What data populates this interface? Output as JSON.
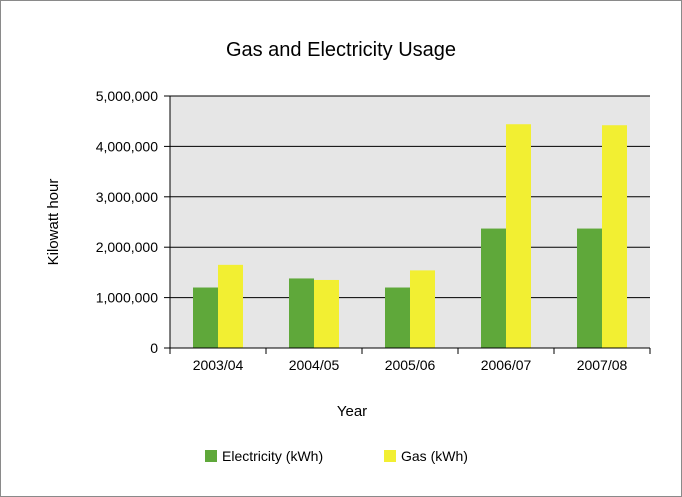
{
  "chart_data": {
    "type": "bar",
    "title": "Gas and Electricity Usage",
    "xlabel": "Year",
    "ylabel": "Kilowatt hour",
    "categories": [
      "2003/04",
      "2004/05",
      "2005/06",
      "2006/07",
      "2007/08"
    ],
    "ylim": [
      0,
      5000000
    ],
    "yticks": [
      0,
      1000000,
      2000000,
      3000000,
      4000000,
      5000000
    ],
    "ytick_labels": [
      "0",
      "1,000,000",
      "2,000,000",
      "3,000,000",
      "4,000,000",
      "5,000,000"
    ],
    "grid": true,
    "legend_position": "bottom",
    "series": [
      {
        "name": "Electricity (kWh)",
        "color": "#5fa83a",
        "values": [
          1200000,
          1380000,
          1200000,
          2370000,
          2370000
        ]
      },
      {
        "name": "Gas (kWh)",
        "color": "#f2ef32",
        "values": [
          1650000,
          1350000,
          1540000,
          4440000,
          4420000
        ]
      }
    ],
    "plot_background": "#e6e6e6",
    "gridline_color": "#000000"
  }
}
